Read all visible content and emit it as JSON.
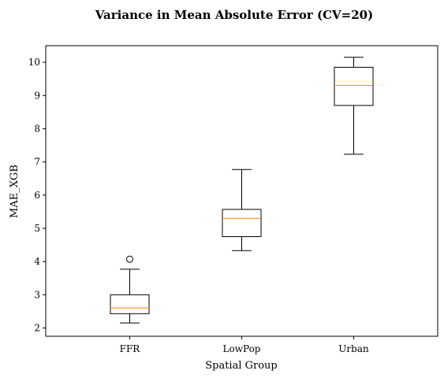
{
  "chart_data": {
    "type": "box",
    "title": "Variance in Mean Absolute Error (CV=20)",
    "xlabel": "Spatial Group",
    "ylabel": "MAE_XGB",
    "categories": [
      "FFR",
      "LowPop",
      "Urban"
    ],
    "ylim": [
      1.75,
      10.5
    ],
    "yticks": [
      2,
      3,
      4,
      5,
      6,
      7,
      8,
      9,
      10
    ],
    "grid": false,
    "colors": {
      "box": "#000000",
      "median": "#ff7f0e",
      "outlier": "#000000"
    },
    "boxes": [
      {
        "category": "FFR",
        "whisker_low": 2.15,
        "q1": 2.43,
        "median": 2.6,
        "q3": 3.0,
        "whisker_high": 3.77,
        "outliers": [
          4.07
        ]
      },
      {
        "category": "LowPop",
        "whisker_low": 4.33,
        "q1": 4.75,
        "median": 5.3,
        "q3": 5.57,
        "whisker_high": 6.77,
        "outliers": []
      },
      {
        "category": "Urban",
        "whisker_low": 7.23,
        "q1": 8.7,
        "median": 9.3,
        "q3": 9.85,
        "whisker_high": 10.15,
        "outliers": []
      }
    ]
  }
}
